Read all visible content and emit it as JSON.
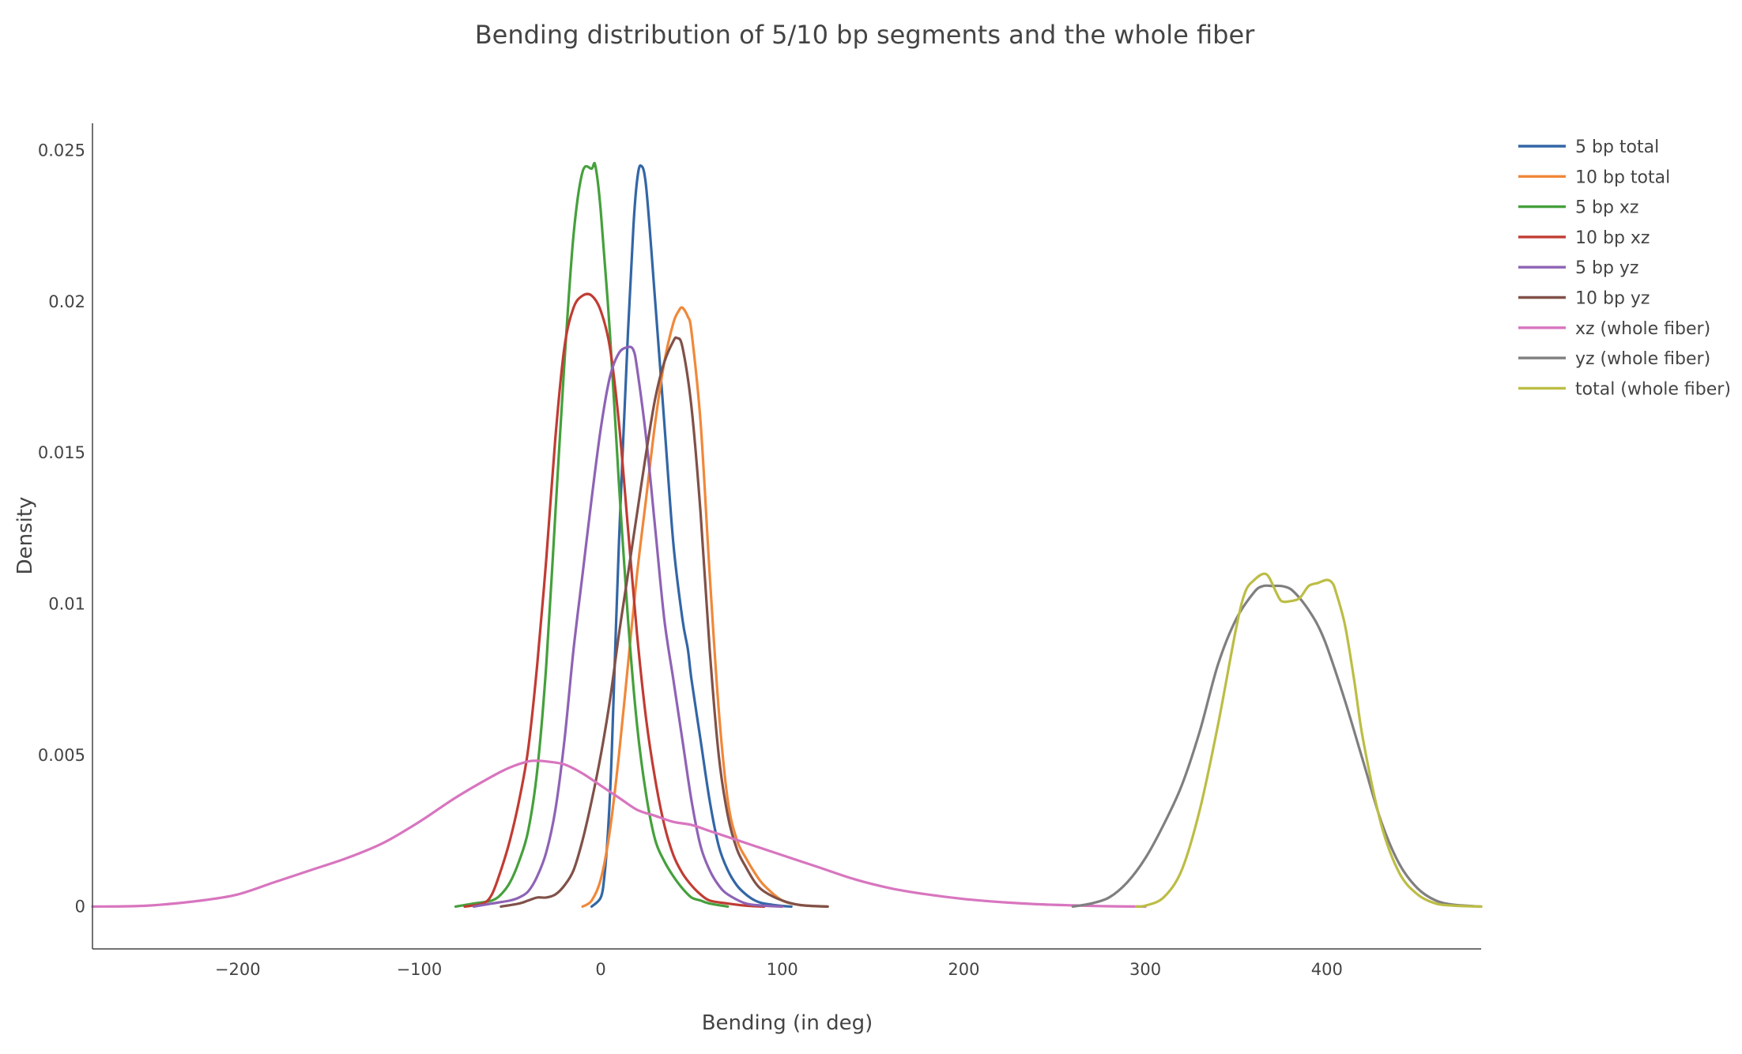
{
  "chart_data": {
    "type": "line",
    "title": "Bending distribution of 5/10 bp segments and the whole fiber",
    "xlabel": "Bending (in deg)",
    "ylabel": "Density",
    "xlim": [
      -280,
      485
    ],
    "ylim": [
      -0.0014,
      0.0259
    ],
    "x_ticks": [
      -200,
      -100,
      0,
      100,
      200,
      300,
      400
    ],
    "x_tick_labels": [
      "−200",
      "−100",
      "0",
      "100",
      "200",
      "300",
      "400"
    ],
    "y_ticks": [
      0,
      0.005,
      0.01,
      0.015,
      0.02,
      0.025
    ],
    "y_tick_labels": [
      "0",
      "0.005",
      "0.01",
      "0.015",
      "0.02",
      "0.025"
    ],
    "grid": false,
    "legend_position": "top-right",
    "series": [
      {
        "name": "5 bp total",
        "color": "#3366a6",
        "x": [
          -5,
          0,
          2,
          4,
          6,
          10,
          15,
          18,
          20,
          22,
          25,
          30,
          35,
          40,
          45,
          48,
          50,
          55,
          60,
          65,
          70,
          75,
          80,
          85,
          90,
          100,
          105
        ],
        "y": [
          0,
          0.0003,
          0.001,
          0.0025,
          0.005,
          0.012,
          0.019,
          0.0225,
          0.024,
          0.0245,
          0.0238,
          0.02,
          0.016,
          0.012,
          0.0095,
          0.0085,
          0.0075,
          0.0055,
          0.0035,
          0.002,
          0.0012,
          0.0007,
          0.0004,
          0.0002,
          0.0001,
          2e-05,
          0
        ]
      },
      {
        "name": "10 bp total",
        "color": "#f0883a",
        "x": [
          -10,
          -5,
          0,
          5,
          10,
          15,
          20,
          25,
          30,
          35,
          40,
          43,
          45,
          48,
          50,
          55,
          60,
          65,
          70,
          75,
          80,
          85,
          90,
          100,
          110,
          120,
          125
        ],
        "y": [
          0,
          0.0002,
          0.0009,
          0.0025,
          0.005,
          0.008,
          0.011,
          0.0135,
          0.016,
          0.018,
          0.0193,
          0.0197,
          0.0198,
          0.0195,
          0.019,
          0.016,
          0.011,
          0.0065,
          0.0035,
          0.0022,
          0.0016,
          0.0011,
          0.0007,
          0.0002,
          5e-05,
          1e-05,
          0
        ]
      },
      {
        "name": "5 bp xz",
        "color": "#45a03c",
        "x": [
          -80,
          -70,
          -60,
          -55,
          -50,
          -45,
          -40,
          -35,
          -30,
          -25,
          -20,
          -15,
          -10,
          -5,
          -3,
          0,
          5,
          10,
          15,
          20,
          25,
          30,
          35,
          40,
          45,
          50,
          55,
          60,
          70
        ],
        "y": [
          0,
          0.0001,
          0.0002,
          0.0004,
          0.0008,
          0.0015,
          0.0025,
          0.0045,
          0.008,
          0.013,
          0.018,
          0.0222,
          0.0243,
          0.0244,
          0.0245,
          0.023,
          0.019,
          0.014,
          0.0095,
          0.006,
          0.0037,
          0.0022,
          0.0015,
          0.001,
          0.0006,
          0.0003,
          0.0002,
          0.0001,
          0
        ]
      },
      {
        "name": "10 bp xz",
        "color": "#c03c33",
        "x": [
          -75,
          -65,
          -60,
          -55,
          -50,
          -45,
          -40,
          -35,
          -30,
          -25,
          -20,
          -15,
          -10,
          -5,
          0,
          5,
          10,
          15,
          20,
          25,
          30,
          35,
          40,
          45,
          50,
          55,
          60,
          70,
          80,
          90
        ],
        "y": [
          0,
          0.0001,
          0.0004,
          0.0012,
          0.0022,
          0.0035,
          0.0052,
          0.008,
          0.0115,
          0.0155,
          0.0185,
          0.0198,
          0.0202,
          0.0202,
          0.0197,
          0.0185,
          0.016,
          0.0125,
          0.009,
          0.0062,
          0.0042,
          0.0027,
          0.0017,
          0.0011,
          0.0007,
          0.0004,
          0.0002,
          0.0001,
          3e-05,
          0
        ]
      },
      {
        "name": "5 bp yz",
        "color": "#8e63b5",
        "x": [
          -70,
          -60,
          -50,
          -45,
          -40,
          -35,
          -30,
          -25,
          -20,
          -15,
          -10,
          -5,
          0,
          5,
          10,
          15,
          18,
          20,
          25,
          30,
          35,
          40,
          45,
          50,
          55,
          60,
          65,
          70,
          80,
          90,
          100
        ],
        "y": [
          0,
          0.0001,
          0.0002,
          0.0003,
          0.0005,
          0.001,
          0.0018,
          0.0032,
          0.0055,
          0.0085,
          0.011,
          0.0135,
          0.0158,
          0.0175,
          0.0183,
          0.0185,
          0.0184,
          0.0178,
          0.0155,
          0.0125,
          0.0095,
          0.0075,
          0.0055,
          0.0035,
          0.002,
          0.0012,
          0.0007,
          0.0004,
          0.0001,
          3e-05,
          0
        ]
      },
      {
        "name": "10 bp yz",
        "color": "#805148",
        "x": [
          -55,
          -45,
          -40,
          -35,
          -30,
          -25,
          -20,
          -15,
          -10,
          -5,
          0,
          5,
          10,
          15,
          20,
          25,
          30,
          35,
          40,
          42,
          45,
          50,
          55,
          60,
          65,
          70,
          75,
          80,
          85,
          90,
          100,
          110,
          125
        ],
        "y": [
          0,
          0.0001,
          0.0002,
          0.0003,
          0.0003,
          0.0004,
          0.0007,
          0.0012,
          0.0022,
          0.0035,
          0.005,
          0.0068,
          0.009,
          0.011,
          0.013,
          0.015,
          0.0168,
          0.018,
          0.0187,
          0.0188,
          0.0185,
          0.0165,
          0.013,
          0.0085,
          0.005,
          0.003,
          0.0019,
          0.0013,
          0.0008,
          0.0005,
          0.0002,
          5e-05,
          0
        ]
      },
      {
        "name": "xz (whole fiber)",
        "color": "#d875bf",
        "x": [
          -280,
          -250,
          -220,
          -200,
          -180,
          -160,
          -140,
          -120,
          -100,
          -80,
          -60,
          -50,
          -40,
          -35,
          -30,
          -20,
          -10,
          0,
          10,
          20,
          30,
          40,
          50,
          60,
          70,
          80,
          90,
          100,
          120,
          140,
          160,
          180,
          200,
          220,
          240,
          260,
          280,
          300
        ],
        "y": [
          0,
          3e-05,
          0.0002,
          0.0004,
          0.0008,
          0.0012,
          0.0016,
          0.0021,
          0.0028,
          0.0036,
          0.0043,
          0.0046,
          0.0048,
          0.00482,
          0.0048,
          0.0047,
          0.0044,
          0.004,
          0.0036,
          0.0032,
          0.003,
          0.0028,
          0.0027,
          0.0025,
          0.0023,
          0.0021,
          0.0019,
          0.0017,
          0.0013,
          0.0009,
          0.0006,
          0.0004,
          0.00025,
          0.00015,
          8e-05,
          4e-05,
          1e-05,
          0
        ]
      },
      {
        "name": "yz (whole fiber)",
        "color": "#7f7f7f",
        "x": [
          260,
          270,
          280,
          290,
          300,
          310,
          320,
          330,
          340,
          350,
          360,
          365,
          370,
          375,
          380,
          385,
          390,
          395,
          400,
          410,
          420,
          430,
          440,
          450,
          460,
          470,
          485
        ],
        "y": [
          0,
          0.0001,
          0.0003,
          0.0008,
          0.0016,
          0.0027,
          0.004,
          0.0058,
          0.008,
          0.0095,
          0.0104,
          0.0106,
          0.0106,
          0.0106,
          0.0105,
          0.0102,
          0.0098,
          0.0093,
          0.0086,
          0.0068,
          0.0048,
          0.0028,
          0.0014,
          0.0006,
          0.0002,
          6e-05,
          0
        ]
      },
      {
        "name": "total (whole fiber)",
        "color": "#bcbd45",
        "x": [
          295,
          300,
          310,
          320,
          330,
          340,
          350,
          355,
          360,
          365,
          368,
          372,
          375,
          380,
          385,
          390,
          395,
          400,
          403,
          405,
          410,
          415,
          420,
          430,
          440,
          450,
          460,
          470,
          485
        ],
        "y": [
          0,
          3e-05,
          0.0003,
          0.0012,
          0.0032,
          0.006,
          0.0092,
          0.0104,
          0.0108,
          0.011,
          0.0109,
          0.0104,
          0.0101,
          0.0101,
          0.0102,
          0.0106,
          0.0107,
          0.0108,
          0.0107,
          0.0104,
          0.0093,
          0.0075,
          0.0055,
          0.0027,
          0.0011,
          0.0004,
          0.0001,
          3e-05,
          0
        ]
      }
    ]
  }
}
